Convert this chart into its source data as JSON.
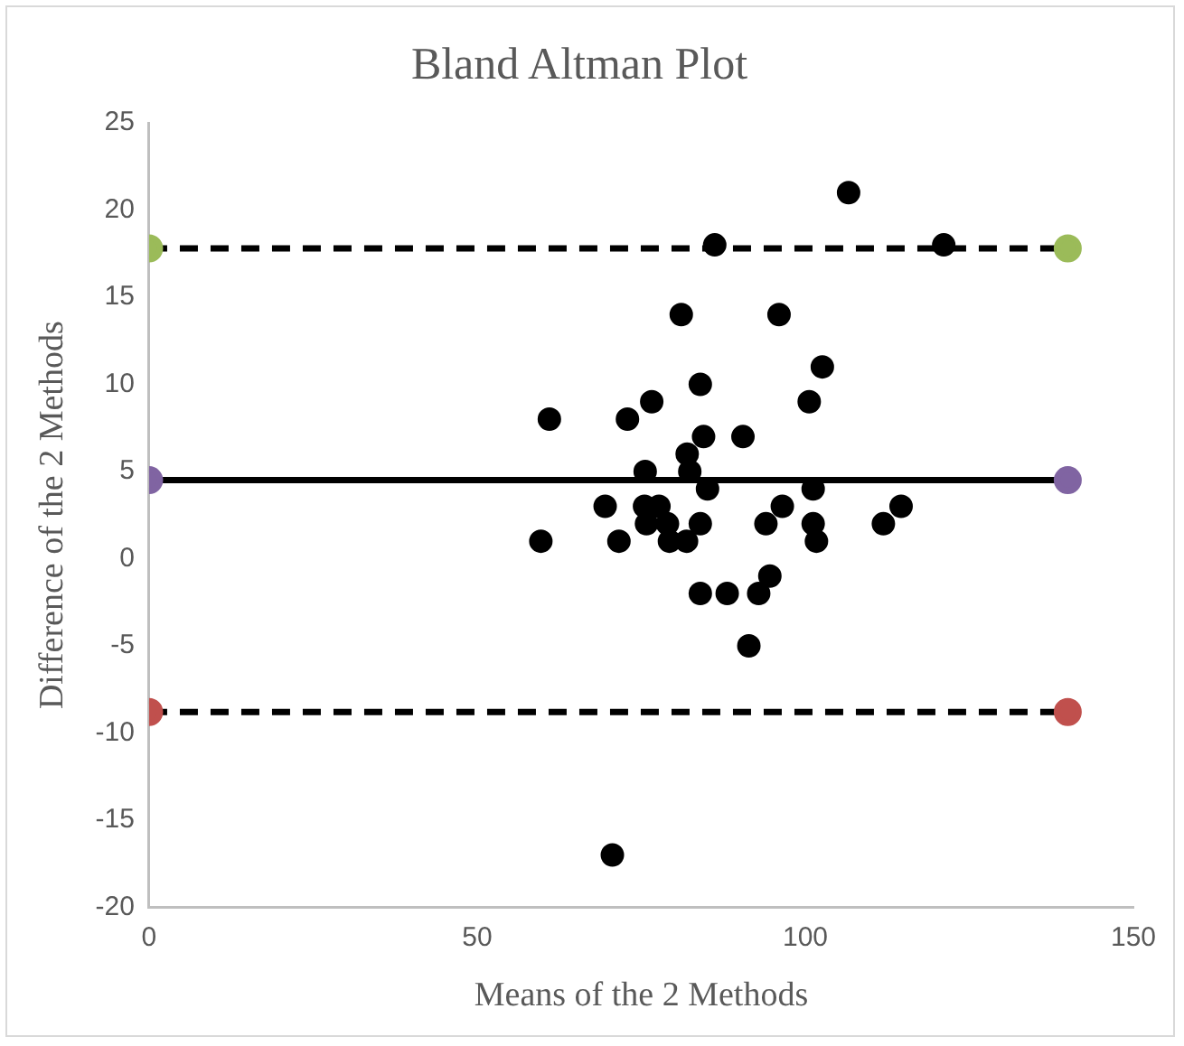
{
  "chart_data": {
    "type": "scatter",
    "title": "Bland Altman Plot",
    "xlabel": "Means of the 2 Methods",
    "ylabel": "Difference of the 2 Methods",
    "xlim": [
      0,
      150
    ],
    "xticks": [
      0,
      50,
      100,
      150
    ],
    "ylim": [
      -20,
      25
    ],
    "yticks": [
      -20,
      -15,
      -10,
      -5,
      0,
      5,
      10,
      15,
      20,
      25
    ],
    "grid": false,
    "legend": false,
    "marker": "circle",
    "series": [
      {
        "type": "line",
        "x": [
          0,
          140
        ],
        "values": [
          17.8,
          17.8
        ],
        "color": "#000000",
        "colors": [
          "#9bbb59",
          "#9bbb59"
        ],
        "line_style": "dashed"
      },
      {
        "type": "line",
        "x": [
          0,
          140
        ],
        "values": [
          4.5,
          4.5
        ],
        "color": "#000000",
        "colors": [
          "#8064a2",
          "#8064a2"
        ],
        "line_style": "solid"
      },
      {
        "type": "line",
        "x": [
          0,
          140
        ],
        "values": [
          -8.8,
          -8.8
        ],
        "color": "#000000",
        "colors": [
          "#c0504d",
          "#c0504d"
        ],
        "line_style": "dashed"
      },
      {
        "type": "scatter",
        "color": "#000000",
        "x": [
          106.6,
          86.2,
          121.1,
          81.1,
          96,
          102.6,
          84,
          61,
          72.9,
          76.6,
          100.6,
          84.5,
          90.5,
          82,
          75.6,
          82.4,
          85.1,
          101.2,
          69.5,
          75.5,
          77.7,
          96.5,
          114.6,
          75.8,
          79,
          84,
          94,
          101.2,
          111.9,
          59.7,
          71.6,
          79.3,
          81.9,
          101.7,
          94.6,
          84,
          88.1,
          92.9,
          91.4,
          70.6
        ],
        "values": [
          21,
          18,
          18,
          14,
          14,
          11,
          10,
          8,
          8,
          9,
          9,
          7,
          7,
          6,
          5,
          5,
          4,
          4,
          3,
          3,
          3,
          3,
          3,
          2,
          2,
          2,
          2,
          2,
          2,
          1,
          1,
          1,
          1,
          1,
          -1,
          -2,
          -2,
          -2,
          -5,
          -17
        ]
      }
    ]
  }
}
